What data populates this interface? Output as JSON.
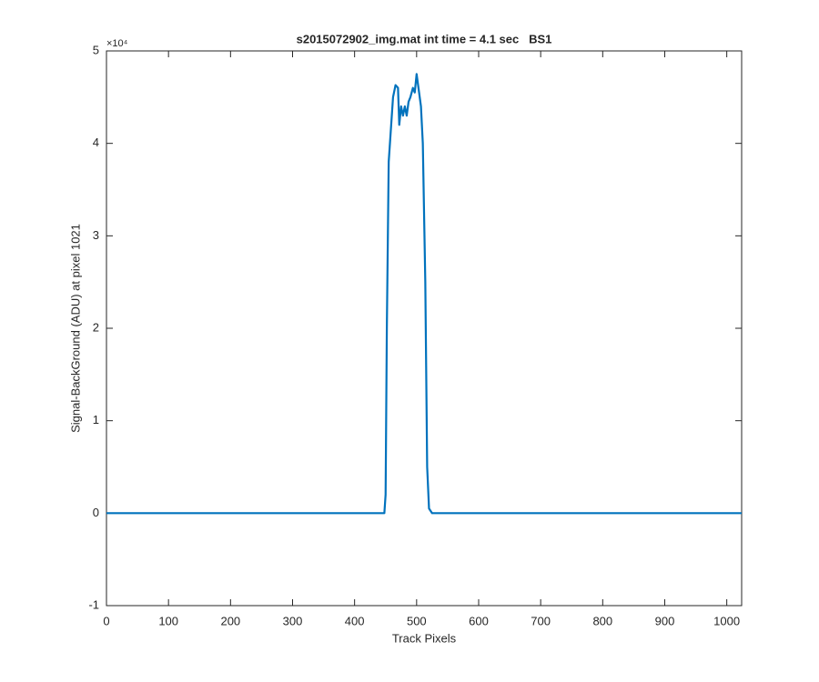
{
  "chart_data": {
    "type": "line",
    "title": "s2015072902_img.mat int time = 4.1 sec   BS1",
    "x_label": "Track Pixels",
    "y_label": "Signal-BackGround (ADU) at pixel 1021",
    "y_multiplier": "×10⁴",
    "x": [
      0,
      100,
      200,
      300,
      400,
      448,
      450,
      452,
      455,
      458,
      462,
      466,
      470,
      472,
      475,
      478,
      481,
      484,
      487,
      490,
      494,
      497,
      500,
      503,
      507,
      510,
      514,
      517,
      520,
      525,
      600,
      700,
      800,
      900,
      1024
    ],
    "series": [
      {
        "color": "#0072bd",
        "values": [
          0,
          0,
          0,
          0,
          0,
          0,
          2000,
          20000,
          38000,
          41000,
          45000,
          46300,
          46000,
          42000,
          44000,
          43000,
          44000,
          43000,
          44500,
          45000,
          46000,
          45500,
          47500,
          46000,
          44000,
          40000,
          25000,
          5000,
          500,
          0,
          0,
          0,
          0,
          0,
          0
        ]
      }
    ],
    "xlim": [
      0,
      1024
    ],
    "xticks": [
      0,
      100,
      200,
      300,
      400,
      500,
      600,
      700,
      800,
      900,
      1000
    ],
    "ylim": [
      -10000,
      50000
    ],
    "yticks": [
      {
        "value": -10000,
        "label": "-1"
      },
      {
        "value": 0,
        "label": "0"
      },
      {
        "value": 10000,
        "label": "1"
      },
      {
        "value": 20000,
        "label": "2"
      },
      {
        "value": 30000,
        "label": "3"
      },
      {
        "value": 40000,
        "label": "4"
      },
      {
        "value": 50000,
        "label": "5"
      }
    ],
    "grid": false
  }
}
